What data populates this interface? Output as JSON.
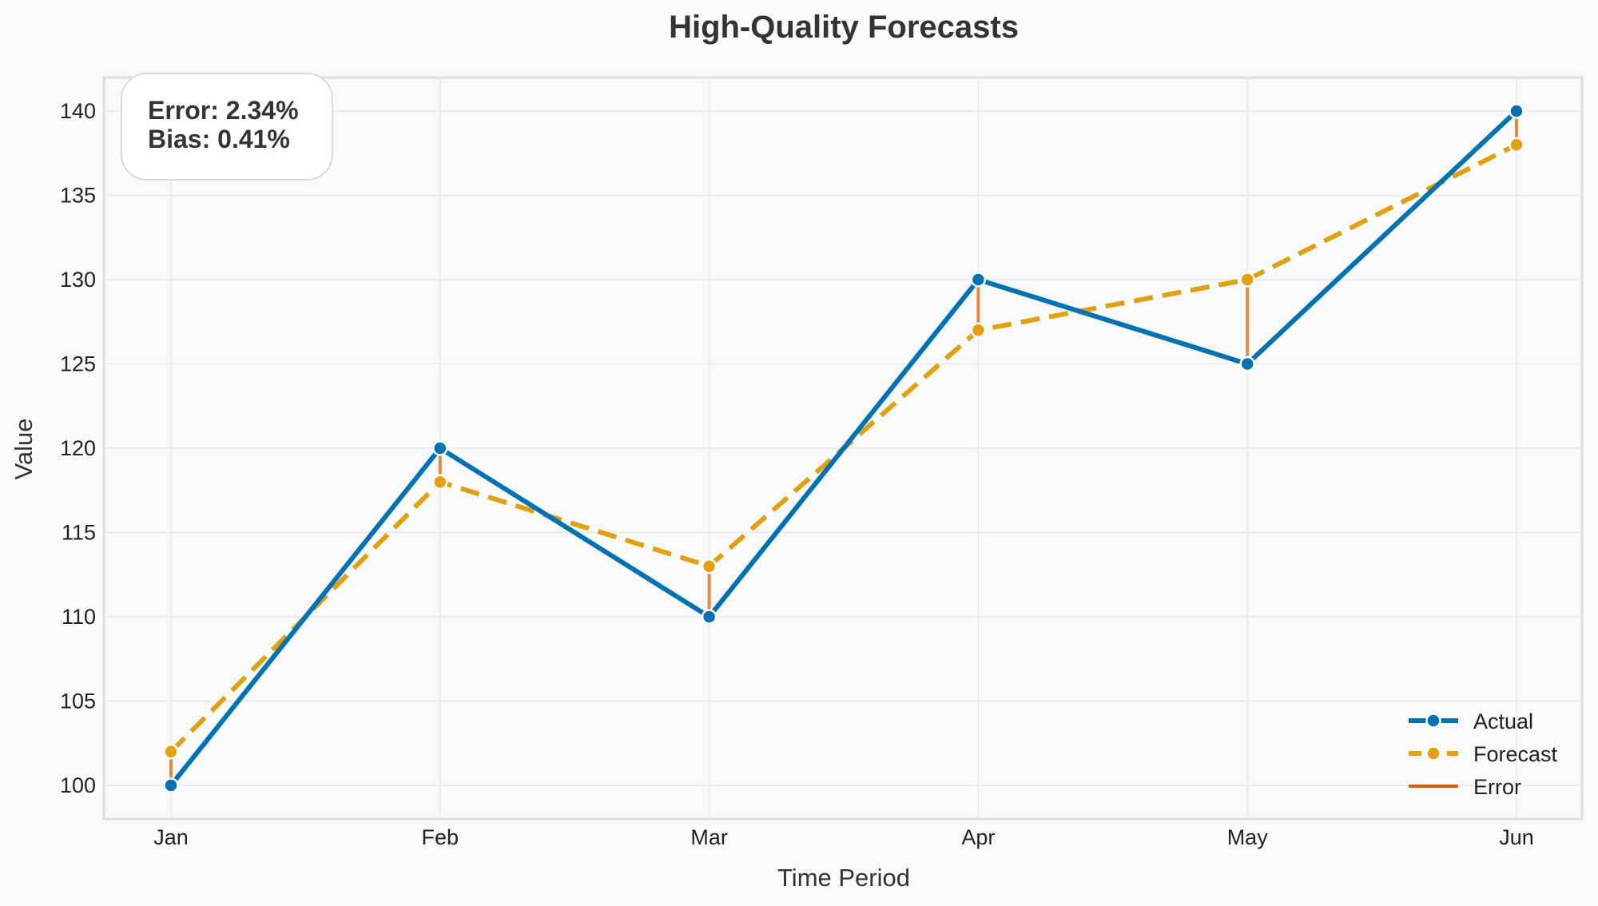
{
  "chart_data": {
    "type": "line",
    "title": "High-Quality Forecasts",
    "xlabel": "Time Period",
    "ylabel": "Value",
    "categories": [
      "Jan",
      "Feb",
      "Mar",
      "Apr",
      "May",
      "Jun"
    ],
    "ylim": [
      98,
      142
    ],
    "yticks": [
      100,
      105,
      110,
      115,
      120,
      125,
      130,
      135,
      140
    ],
    "grid": true,
    "series": [
      {
        "name": "Actual",
        "values": [
          100,
          120,
          110,
          130,
          125,
          140
        ],
        "color": "#0072b2",
        "style": "solid"
      },
      {
        "name": "Forecast",
        "values": [
          102,
          118,
          113,
          127,
          130,
          138
        ],
        "color": "#e0a00f",
        "style": "dashed"
      }
    ],
    "error_series": {
      "name": "Error",
      "color": "#d55e00"
    },
    "legend": {
      "position": "bottom-right",
      "entries": [
        "Actual",
        "Forecast",
        "Error"
      ]
    },
    "annotation": {
      "position": "top-left",
      "lines": [
        "Error: 2.34%",
        "Bias: 0.41%"
      ]
    }
  }
}
